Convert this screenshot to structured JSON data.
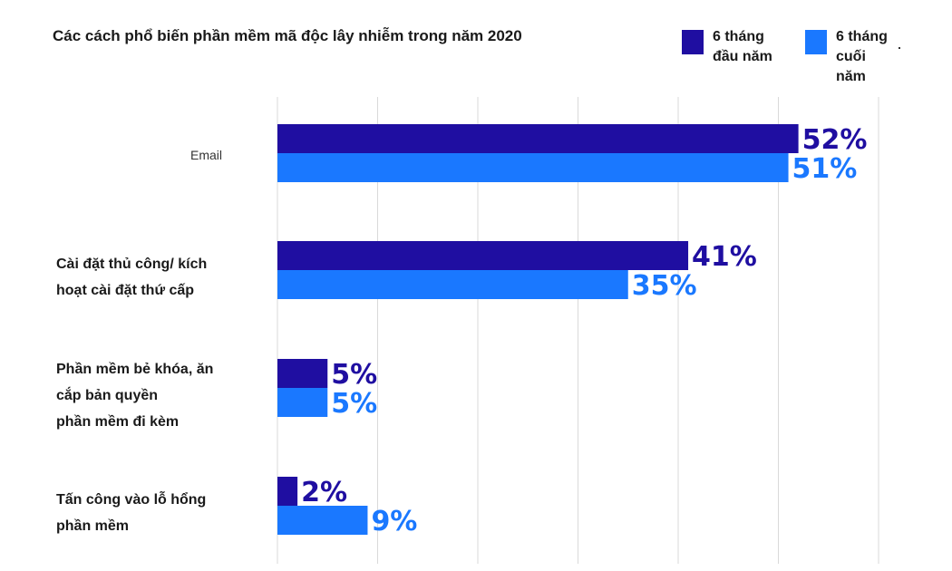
{
  "chart_data": {
    "type": "bar",
    "orientation": "horizontal",
    "title": "Các cách phổ biến phần mềm mã độc lây nhiễm trong năm 2020",
    "categories": [
      "Email",
      "Cài đặt thủ công/ kích hoạt cài đặt thứ cấp",
      "Phần mềm bẻ khóa, ăn cắp bản quyền phần mềm đi kèm",
      "Tấn công vào lỗ hổng phần mềm"
    ],
    "category_lines": [
      [
        "Email"
      ],
      [
        "Cài đặt thủ công/ kích",
        "hoạt cài đặt thứ cấp"
      ],
      [
        "Phần mềm bẻ khóa, ăn",
        "cắp bản quyền",
        "phần mềm đi kèm"
      ],
      [
        "Tấn công vào lỗ hổng",
        "phần mềm"
      ]
    ],
    "series": [
      {
        "name": "6 tháng đầu năm",
        "values": [
          52,
          41,
          5,
          2
        ],
        "labels": [
          "52%",
          "41%",
          "5%",
          "2%"
        ],
        "color": "#1f0ea1"
      },
      {
        "name": "6 tháng cuối năm",
        "values": [
          51,
          35,
          5,
          9
        ],
        "labels": [
          "51%",
          "35%",
          "5%",
          "9%"
        ],
        "color": "#1a78ff"
      }
    ],
    "legend": {
      "position": "top-right",
      "items": [
        {
          "lines": [
            "6 tháng",
            "đầu năm"
          ],
          "color": "#1f0ea1"
        },
        {
          "lines": [
            "6 tháng",
            "cuối",
            "năm"
          ],
          "color": "#1a78ff"
        }
      ]
    },
    "xlim": [
      0,
      60
    ],
    "grid": true,
    "axis_ticks_shown": false
  }
}
